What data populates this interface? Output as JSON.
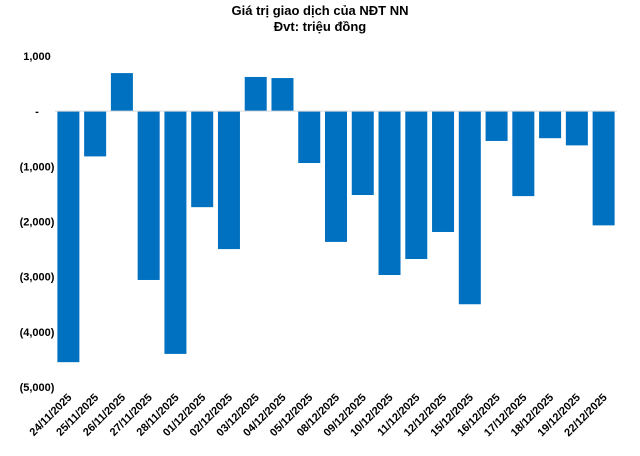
{
  "chart_data": {
    "type": "bar",
    "title": "Giá trị giao dịch của NĐT NN",
    "subtitle": "Đvt: triệu đồng",
    "xlabel": "",
    "ylabel": "",
    "ylim": [
      -5000,
      1000
    ],
    "yticks": [
      1000,
      0,
      -1000,
      -2000,
      -3000,
      -4000,
      -5000
    ],
    "ytick_labels": [
      "1,000",
      "-",
      "(1,000)",
      "(2,000)",
      "(3,000)",
      "(4,000)",
      "(5,000)"
    ],
    "grid": false,
    "legend": "none",
    "bar_color": "#0070C0",
    "categories": [
      "24/11/2025",
      "25/11/2025",
      "26/11/2025",
      "27/11/2025",
      "28/11/2025",
      "01/12/2025",
      "02/12/2025",
      "03/12/2025",
      "04/12/2025",
      "05/12/2025",
      "08/12/2025",
      "09/12/2025",
      "10/12/2025",
      "11/12/2025",
      "12/12/2025",
      "15/12/2025",
      "16/12/2025",
      "17/12/2025",
      "18/12/2025",
      "19/12/2025",
      "22/12/2025"
    ],
    "values": [
      -4550,
      -820,
      690,
      -3060,
      -4400,
      -1740,
      -2500,
      620,
      600,
      -940,
      -2370,
      -1520,
      -2970,
      -2680,
      -2190,
      -3500,
      -540,
      -1540,
      -490,
      -620,
      -2070
    ]
  }
}
